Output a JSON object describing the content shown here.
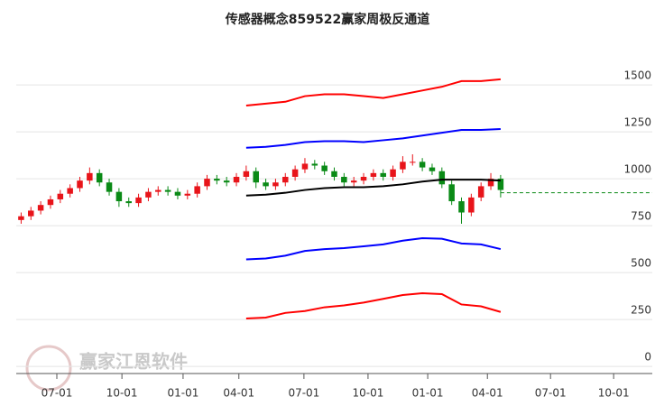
{
  "chart_data": {
    "type": "candlestick",
    "title": "传感器概念859522赢家周极反通道",
    "watermark": "赢家江恩软件",
    "x": [
      1,
      3,
      5,
      7,
      9,
      11,
      13,
      15,
      17,
      19,
      21,
      23,
      25,
      27,
      29,
      31,
      33,
      35,
      37,
      39,
      41,
      43,
      45,
      47,
      49,
      51,
      53,
      55,
      57,
      59,
      61,
      63,
      65,
      67,
      69,
      71,
      73,
      75,
      77,
      79,
      81,
      83,
      85,
      87,
      89,
      91,
      93,
      95,
      97,
      99
    ],
    "open": [
      780,
      800,
      830,
      860,
      890,
      920,
      950,
      990,
      1030,
      980,
      930,
      880,
      870,
      900,
      930,
      940,
      930,
      910,
      920,
      960,
      1000,
      990,
      980,
      1010,
      1040,
      980,
      960,
      980,
      1010,
      1050,
      1080,
      1070,
      1040,
      1010,
      980,
      990,
      1010,
      1030,
      1010,
      1050,
      1090,
      1090,
      1060,
      1040,
      970,
      880,
      820,
      900,
      960,
      1000
    ],
    "high": [
      820,
      850,
      880,
      910,
      940,
      970,
      1010,
      1060,
      1050,
      1000,
      950,
      900,
      920,
      950,
      960,
      960,
      950,
      940,
      980,
      1020,
      1020,
      1010,
      1030,
      1070,
      1060,
      1000,
      1000,
      1030,
      1070,
      1110,
      1100,
      1090,
      1060,
      1030,
      1010,
      1030,
      1050,
      1050,
      1070,
      1120,
      1130,
      1110,
      1080,
      1060,
      990,
      900,
      920,
      980,
      1030,
      1020
    ],
    "low": [
      760,
      780,
      810,
      840,
      870,
      900,
      930,
      970,
      960,
      910,
      850,
      850,
      850,
      880,
      910,
      910,
      890,
      890,
      900,
      940,
      970,
      960,
      960,
      990,
      950,
      940,
      940,
      960,
      990,
      1030,
      1050,
      1020,
      990,
      960,
      960,
      970,
      990,
      990,
      990,
      1030,
      1070,
      1040,
      1020,
      950,
      860,
      760,
      800,
      880,
      940,
      900
    ],
    "close": [
      800,
      830,
      860,
      890,
      920,
      950,
      990,
      1030,
      980,
      930,
      880,
      870,
      900,
      930,
      940,
      930,
      910,
      920,
      960,
      1000,
      990,
      980,
      1010,
      1040,
      980,
      960,
      980,
      1010,
      1050,
      1080,
      1070,
      1040,
      1010,
      980,
      990,
      1010,
      1030,
      1010,
      1050,
      1090,
      1090,
      1060,
      1040,
      970,
      880,
      820,
      900,
      960,
      1000,
      940
    ],
    "up_color": "#e8141a",
    "down_color": "#0a8a16",
    "line_x": [
      47,
      51,
      55,
      59,
      63,
      67,
      71,
      75,
      79,
      83,
      87,
      91,
      95,
      99
    ],
    "lines": [
      {
        "color": "#ff0000",
        "values": [
          1390,
          1400,
          1410,
          1440,
          1450,
          1450,
          1440,
          1430,
          1450,
          1470,
          1490,
          1520,
          1520,
          1530
        ]
      },
      {
        "color": "#0000ff",
        "values": [
          1165,
          1170,
          1180,
          1195,
          1200,
          1200,
          1195,
          1205,
          1215,
          1230,
          1245,
          1260,
          1260,
          1265
        ]
      },
      {
        "color": "#000000",
        "values": [
          910,
          915,
          925,
          940,
          950,
          955,
          955,
          960,
          970,
          985,
          995,
          995,
          995,
          990
        ]
      },
      {
        "color": "#0000ff",
        "values": [
          570,
          575,
          590,
          615,
          625,
          630,
          640,
          650,
          670,
          683,
          680,
          655,
          650,
          625
        ]
      },
      {
        "color": "#ff0000",
        "values": [
          255,
          260,
          285,
          295,
          315,
          325,
          340,
          360,
          380,
          390,
          385,
          330,
          320,
          290
        ]
      }
    ],
    "reference_line": 925,
    "reference_color": "#0a8a16",
    "xlim": [
      0,
      130
    ],
    "ylim": [
      -38,
      1808
    ],
    "xticks": [
      {
        "value": 8.3,
        "label": "07-01"
      },
      {
        "value": 21.6,
        "label": "10-01"
      },
      {
        "value": 34.1,
        "label": "01-01"
      },
      {
        "value": 45.5,
        "label": "04-01"
      },
      {
        "value": 58.8,
        "label": "07-01"
      },
      {
        "value": 71.9,
        "label": "10-01"
      },
      {
        "value": 84.1,
        "label": "01-01"
      },
      {
        "value": 96.3,
        "label": "04-01"
      },
      {
        "value": 109.2,
        "label": "07-01"
      },
      {
        "value": 122.1,
        "label": "10-01"
      }
    ],
    "yticks": [
      0,
      250,
      500,
      750,
      1000,
      1250,
      1500
    ],
    "grid": true
  }
}
